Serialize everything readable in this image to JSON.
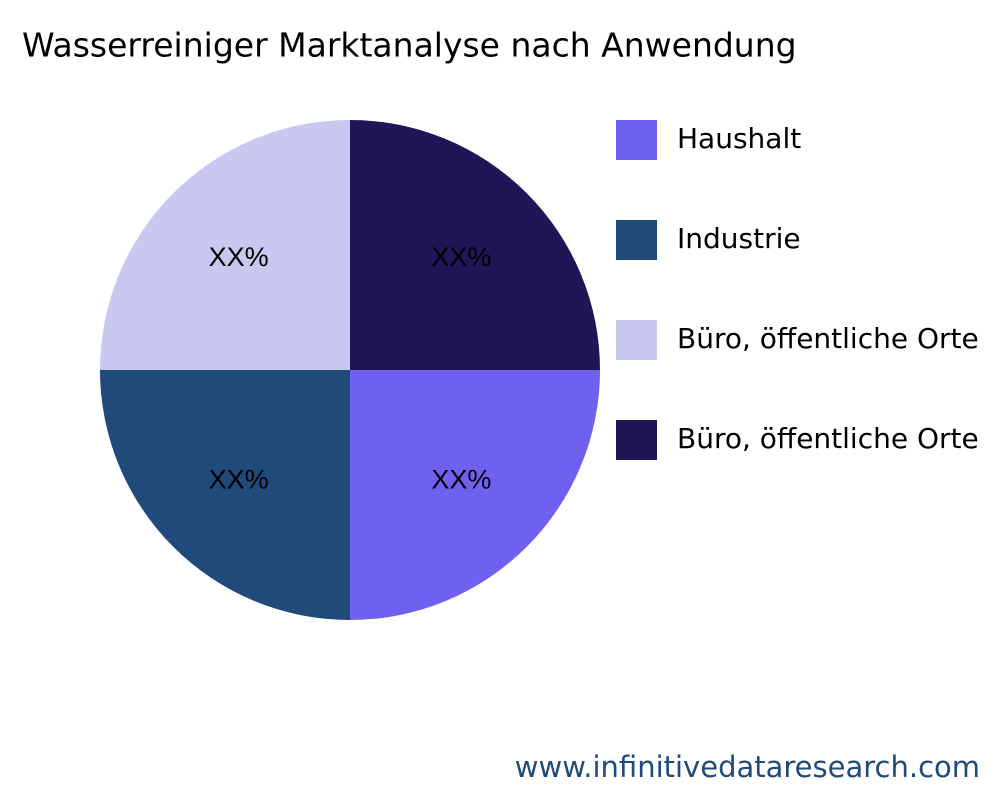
{
  "chart_data": {
    "type": "pie",
    "title": "Wasserreiniger Marktanalyse nach Anwendung",
    "categories": [
      "Haushalt",
      "Industrie",
      "Büro, öffentliche Orte",
      "Büro, öffentliche Orte"
    ],
    "values": [
      25,
      25,
      25,
      25
    ],
    "value_labels": [
      "XX%",
      "XX%",
      "XX%",
      "XX%"
    ],
    "colors": [
      "#7060f0",
      "#1f4a7a",
      "#c8c8f0",
      "#1e1656"
    ],
    "legend": "right",
    "watermark": "www.infinitivedataresearch.com"
  }
}
